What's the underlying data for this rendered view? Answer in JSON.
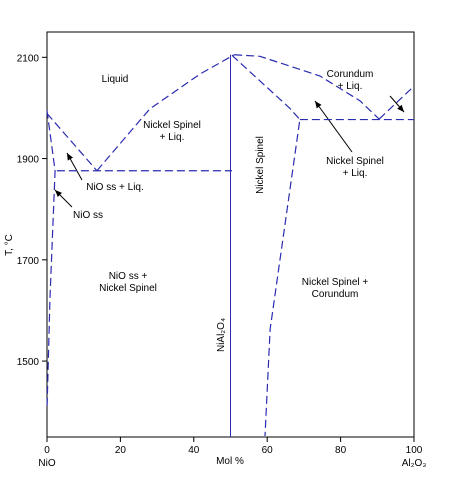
{
  "chart_data": {
    "type": "phase",
    "x_label": "Mol %",
    "y_label": "T, °C",
    "x_end_labels": [
      "NiO",
      "Al₂O₃"
    ],
    "xlim": [
      0,
      100
    ],
    "ylim": [
      1350,
      2150
    ],
    "xticks": [
      0,
      20,
      40,
      60,
      80,
      100
    ],
    "yticks": [
      1500,
      1700,
      1900,
      2100
    ],
    "color": "#2b2bb0",
    "series": [
      {
        "dash": true,
        "x": [
          0,
          13.6
        ],
        "values": [
          1989,
          1876
        ]
      },
      {
        "dash": true,
        "x": [
          13.6,
          28,
          41.7,
          51
        ],
        "values": [
          1876,
          1998,
          2067,
          2105
        ]
      },
      {
        "dash": true,
        "x": [
          51,
          58,
          74.4,
          85.3,
          90.5
        ],
        "values": [
          2105,
          2102,
          2063,
          2014,
          1978
        ]
      },
      {
        "dash": true,
        "x": [
          90.5,
          100
        ],
        "values": [
          1978,
          2043
        ]
      },
      {
        "dash": true,
        "x": [
          68.9,
          100
        ],
        "values": [
          1977,
          1977
        ]
      },
      {
        "dash": true,
        "x": [
          2.7,
          50.4
        ],
        "values": [
          1876,
          1876
        ]
      },
      {
        "dash": true,
        "x": [
          50.4,
          66.2,
          68.9,
          60.8,
          59.4
        ],
        "values": [
          2104,
          1999,
          1977,
          1563,
          1352
        ]
      },
      {
        "dash": true,
        "x": [
          0,
          2.2,
          0.8,
          0
        ],
        "values": [
          1995,
          1876,
          1622,
          1404
        ]
      },
      {
        "dash": false,
        "x": [
          50,
          50
        ],
        "values": [
          2105,
          1350
        ]
      }
    ],
    "annotations": [
      {
        "lines": [
          "Liquid"
        ]
      },
      {
        "lines": [
          "Nickel Spinel",
          "+ Liq."
        ]
      },
      {
        "lines": [
          "Corundum",
          "+ Liq."
        ]
      },
      {
        "lines": [
          "NiO ss + Liq."
        ]
      },
      {
        "lines": [
          "NiO ss"
        ]
      },
      {
        "lines": [
          "Nickel Spinel"
        ]
      },
      {
        "lines": [
          "NiO ss +",
          "Nickel Spinel"
        ]
      },
      {
        "lines": [
          "NiAl₂O₄"
        ]
      },
      {
        "lines": [
          "Nickel Spinel +",
          "Corundum"
        ]
      },
      {
        "lines": [
          "Nickel Spinel",
          "+ Liq."
        ]
      }
    ]
  }
}
